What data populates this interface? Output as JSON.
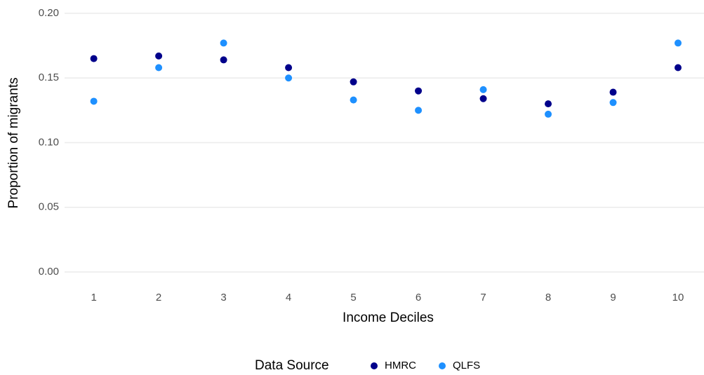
{
  "chart_data": {
    "type": "scatter",
    "x_label": "Income Deciles",
    "y_label": "Proportion of migrants",
    "legend_title": "Data Source",
    "legend_position": "bottom",
    "grid": true,
    "x": [
      1,
      2,
      3,
      4,
      5,
      6,
      7,
      8,
      9,
      10
    ],
    "xlim": [
      0.55,
      10.4
    ],
    "xticks": [
      1,
      2,
      3,
      4,
      5,
      6,
      7,
      8,
      9,
      10
    ],
    "ylim": [
      0,
      0.2
    ],
    "yticks": [
      {
        "value": 0,
        "label": "0.00"
      },
      {
        "value": 0.05,
        "label": "0.05"
      },
      {
        "value": 0.1,
        "label": "0.10"
      },
      {
        "value": 0.15,
        "label": "0.15"
      },
      {
        "value": 0.2,
        "label": "0.20"
      }
    ],
    "series": [
      {
        "name": "HMRC",
        "color": "#00008b",
        "values": [
          0.165,
          0.167,
          0.164,
          0.158,
          0.147,
          0.14,
          0.134,
          0.13,
          0.139,
          0.158
        ]
      },
      {
        "name": "QLFS",
        "color": "#1e90ff",
        "values": [
          0.132,
          0.158,
          0.177,
          0.15,
          0.133,
          0.125,
          0.141,
          0.122,
          0.131,
          0.177
        ]
      }
    ]
  }
}
